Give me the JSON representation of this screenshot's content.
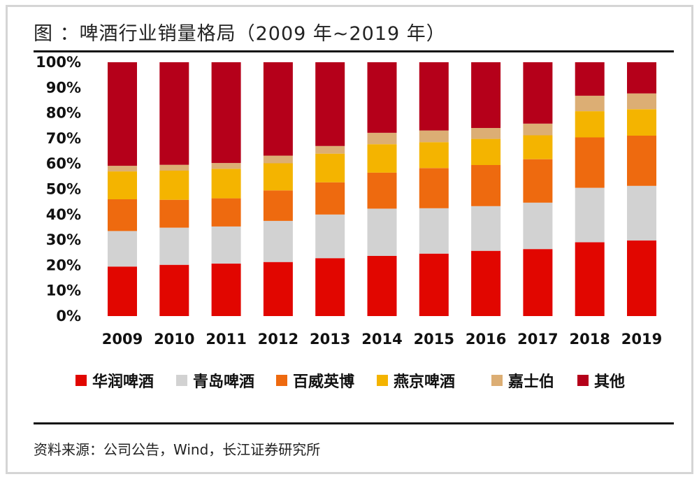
{
  "header": {
    "title": "图  ：啤酒行业销量格局（2009 年~2019 年）"
  },
  "footer": {
    "source": "资料来源：公司公告，Wind，长江证券研究所"
  },
  "chart_data": {
    "type": "bar",
    "stacked": true,
    "title": "图  ：啤酒行业销量格局（2009 年~2019 年）",
    "categories": [
      "2009",
      "2010",
      "2011",
      "2012",
      "2013",
      "2014",
      "2015",
      "2016",
      "2017",
      "2018",
      "2019"
    ],
    "ylim": [
      0,
      100
    ],
    "yticks": [
      "0%",
      "10%",
      "20%",
      "30%",
      "40%",
      "50%",
      "60%",
      "70%",
      "80%",
      "90%",
      "100%"
    ],
    "grid": false,
    "legend_position": "bottom",
    "series": [
      {
        "name": "华润啤酒",
        "color": "#e10600",
        "values": [
          19.5,
          20.2,
          20.7,
          21.3,
          22.8,
          23.7,
          24.6,
          25.7,
          26.4,
          29.1,
          29.8
        ]
      },
      {
        "name": "青岛啤酒",
        "color": "#d2d2d2",
        "values": [
          14.0,
          14.6,
          14.6,
          16.2,
          17.2,
          18.6,
          17.9,
          17.6,
          18.3,
          21.4,
          21.5
        ]
      },
      {
        "name": "百威英博",
        "color": "#ee6a0f",
        "values": [
          12.5,
          11.0,
          11.1,
          12.0,
          12.7,
          14.2,
          15.8,
          16.2,
          17.1,
          19.9,
          19.8
        ]
      },
      {
        "name": "燕京啤酒",
        "color": "#f4b400",
        "values": [
          11.0,
          11.5,
          11.6,
          10.7,
          11.3,
          11.2,
          10.2,
          10.3,
          9.4,
          10.3,
          10.4
        ]
      },
      {
        "name": "嘉士伯",
        "color": "#dcae74",
        "values": [
          2.2,
          2.3,
          2.3,
          3.0,
          3.0,
          4.5,
          4.6,
          4.3,
          4.6,
          6.1,
          6.2
        ]
      },
      {
        "name": "其他",
        "color": "#b5001a",
        "values": [
          40.8,
          40.4,
          39.7,
          36.8,
          33.0,
          27.8,
          26.9,
          25.9,
          24.2,
          13.2,
          12.3
        ]
      }
    ]
  }
}
